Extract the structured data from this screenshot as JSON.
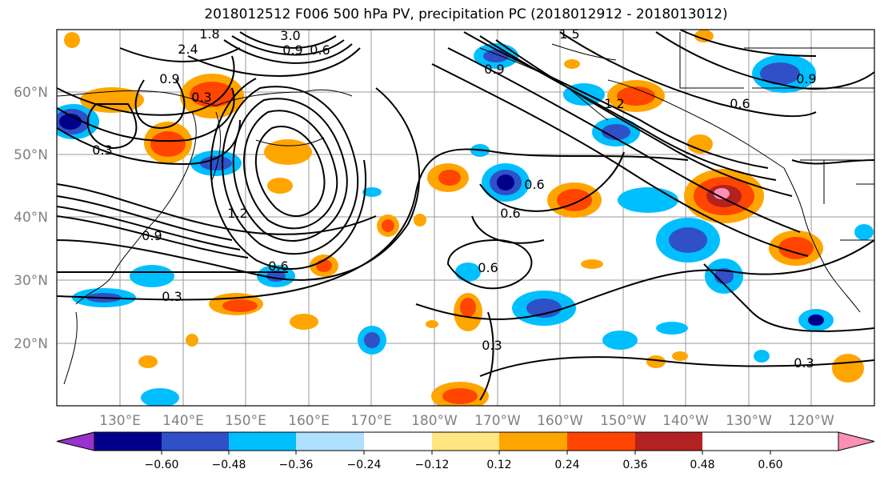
{
  "title": "2018012512 F006 500 hPa PV, precipitation PC (2018012912 - 2018013012)",
  "map": {
    "lat_labels": [
      "60°N",
      "50°N",
      "40°N",
      "30°N",
      "20°N"
    ],
    "lon_labels": [
      "130°E",
      "140°E",
      "150°E",
      "160°E",
      "170°E",
      "180°W",
      "170°W",
      "160°W",
      "150°W",
      "140°W",
      "130°W",
      "120°W"
    ],
    "contour_labels": [
      "3.0",
      "2.4",
      "1.8",
      "0.9",
      "0.6",
      "0.9",
      "0.3",
      "0.3",
      "0.9",
      "1.2",
      "0.6",
      "0.3",
      "0.6",
      "0.6",
      "0.6",
      "0.3",
      "0.9",
      "0.6",
      "0.3",
      "1.5",
      "0.9",
      "1.2"
    ]
  },
  "colorbar": {
    "ticks": [
      "−0.60",
      "−0.48",
      "−0.36",
      "−0.24",
      "−0.12",
      "0.12",
      "0.24",
      "0.36",
      "0.48",
      "0.60"
    ],
    "colors": [
      "#9932cc",
      "#00008b",
      "#3050c8",
      "#00bfff",
      "#b0e0ff",
      "#ffffff",
      "#ffe680",
      "#ffa500",
      "#ff4500",
      "#b22222",
      "#ff8fb5"
    ]
  }
}
